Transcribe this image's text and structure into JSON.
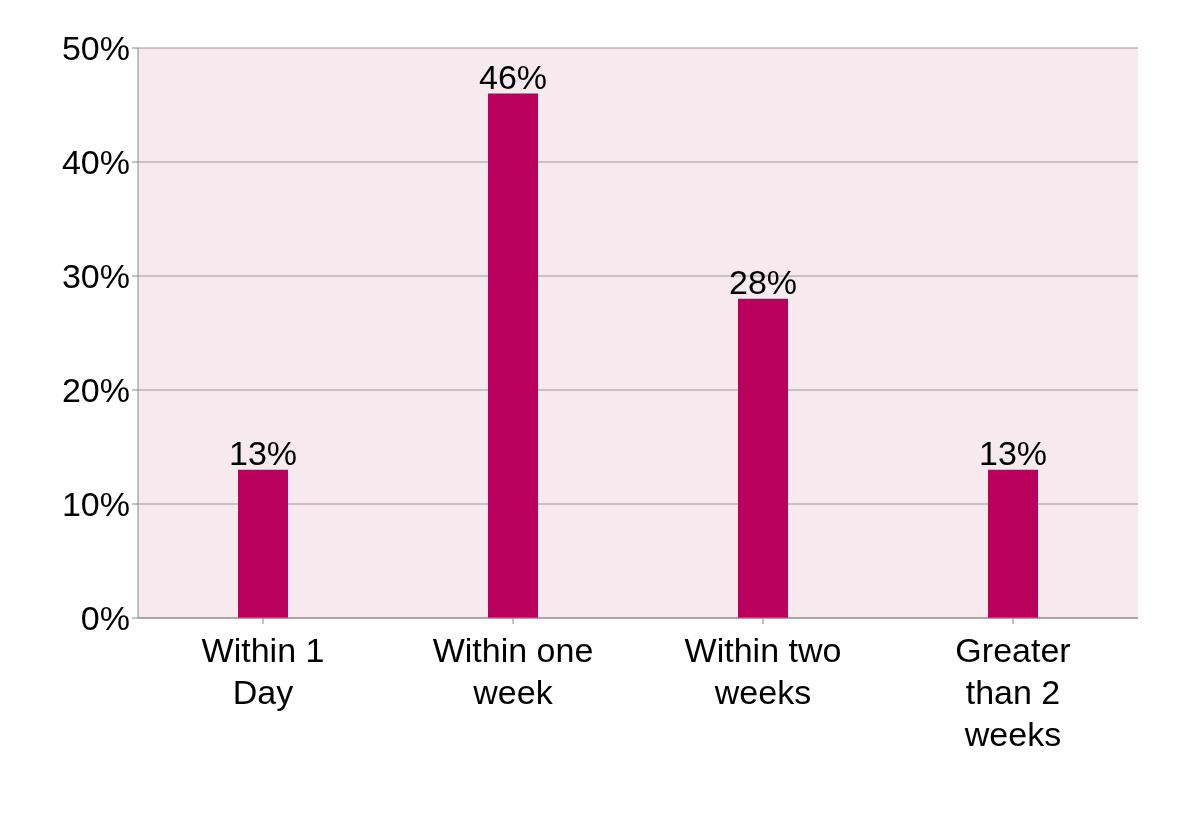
{
  "chart_data": {
    "type": "bar",
    "categories": [
      "Within 1 Day",
      "Within one week",
      "Within two weeks",
      "Greater than 2 weeks"
    ],
    "values": [
      13,
      46,
      28,
      13
    ],
    "color": "#b8005c",
    "ylim": [
      0,
      50
    ],
    "yticks": [
      {
        "value": 0,
        "label": "0%"
      },
      {
        "value": 10,
        "label": "10%"
      },
      {
        "value": 20,
        "label": "20%"
      },
      {
        "value": 30,
        "label": "30%"
      },
      {
        "value": 40,
        "label": "40%"
      },
      {
        "value": 50,
        "label": "50%"
      }
    ],
    "grid": "y",
    "value_labels": [
      "13%",
      "46%",
      "28%",
      "13%"
    ]
  }
}
